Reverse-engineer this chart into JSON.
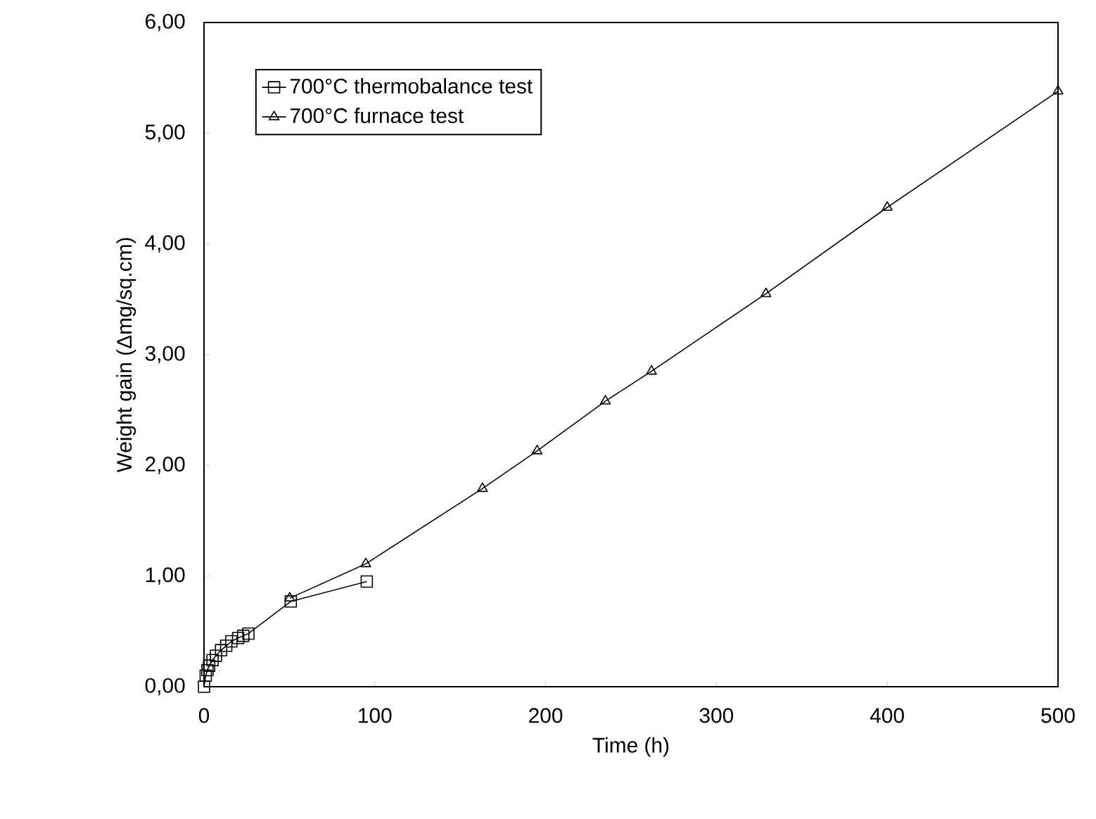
{
  "chart_data": {
    "type": "line",
    "xlabel": "Time (h)",
    "ylabel": "Weight gain  (Δmg/sq.cm)",
    "xlim": [
      0,
      500
    ],
    "ylim": [
      0,
      6
    ],
    "xticks": [
      0,
      100,
      200,
      300,
      400,
      500
    ],
    "yticks": [
      {
        "value": 0,
        "label": "0,00"
      },
      {
        "value": 1,
        "label": "1,00"
      },
      {
        "value": 2,
        "label": "2,00"
      },
      {
        "value": 3,
        "label": "3,00"
      },
      {
        "value": 4,
        "label": "4,00"
      },
      {
        "value": 5,
        "label": "5,00"
      },
      {
        "value": 6,
        "label": "6,00"
      }
    ],
    "legend": "top left",
    "grid": false,
    "line_style": "solid",
    "series": [
      {
        "name": "700°C  thermobalance test",
        "color": "#000000",
        "marker": "square",
        "x": [
          0,
          1,
          2,
          3,
          5,
          7,
          10,
          13,
          16,
          20,
          23,
          26,
          50.8,
          95.3
        ],
        "values": [
          0.0,
          0.1,
          0.15,
          0.19,
          0.24,
          0.28,
          0.33,
          0.37,
          0.41,
          0.44,
          0.46,
          0.48,
          0.77,
          0.95
        ]
      },
      {
        "name": "700°C  furnace test",
        "color": "#000000",
        "marker": "triangle",
        "x": [
          50.2,
          94.7,
          163,
          195,
          235,
          262,
          329,
          400,
          500
        ],
        "values": [
          0.8,
          1.11,
          1.79,
          2.13,
          2.58,
          2.85,
          3.55,
          4.33,
          5.38
        ]
      }
    ]
  }
}
